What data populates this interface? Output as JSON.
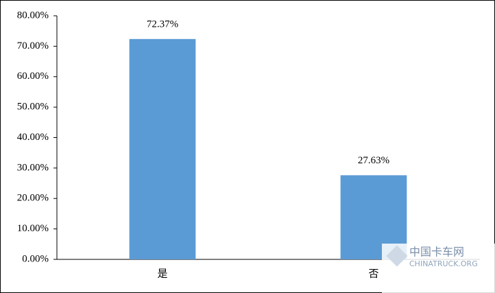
{
  "chart_data": {
    "type": "bar",
    "categories": [
      "是",
      "否"
    ],
    "values": [
      72.37,
      27.63
    ],
    "value_labels": [
      "72.37%",
      "27.63%"
    ],
    "color": "#5b9bd5",
    "ylim": [
      0,
      80
    ],
    "yticks": [
      {
        "value": 0,
        "label": "0.00%"
      },
      {
        "value": 10,
        "label": "10.00%"
      },
      {
        "value": 20,
        "label": "20.00%"
      },
      {
        "value": 30,
        "label": "30.00%"
      },
      {
        "value": 40,
        "label": "40.00%"
      },
      {
        "value": 50,
        "label": "50.00%"
      },
      {
        "value": 60,
        "label": "60.00%"
      },
      {
        "value": 70,
        "label": "70.00%"
      },
      {
        "value": 80,
        "label": "80.00%"
      }
    ],
    "grid": false
  },
  "watermark": {
    "title": "中国卡车网",
    "subtitle": "CHINATRUCK.ORG"
  }
}
